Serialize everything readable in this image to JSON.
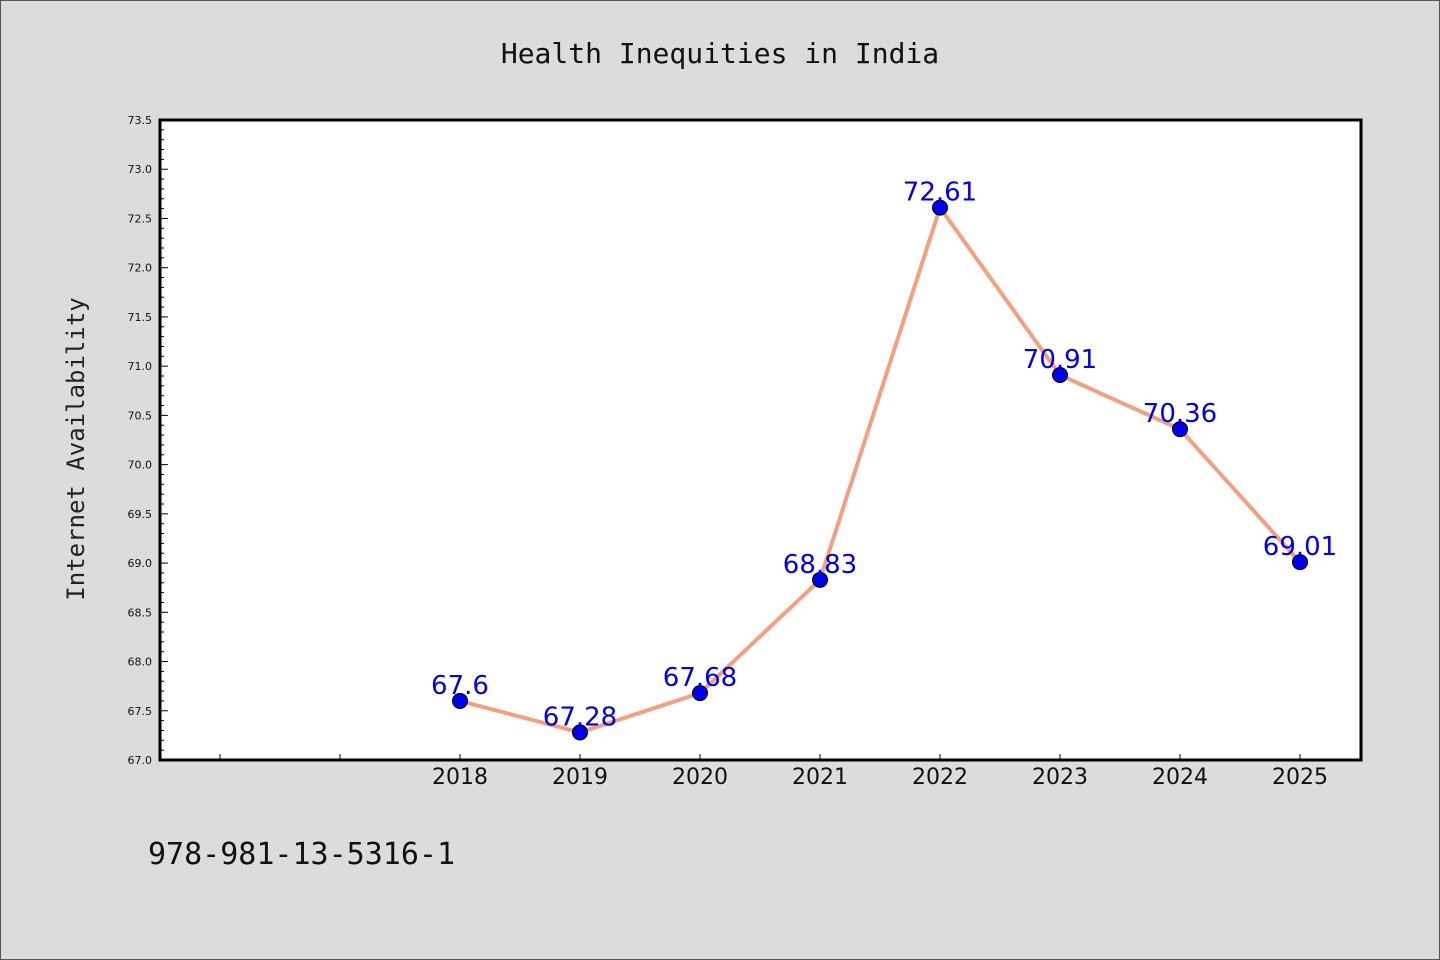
{
  "chart_data": {
    "type": "line",
    "title": "Health Inequities in India",
    "ylabel": "Internet Availability",
    "xlabel": "",
    "categories": [
      "2018",
      "2019",
      "2020",
      "2021",
      "2022",
      "2023",
      "2024",
      "2025"
    ],
    "series": [
      {
        "values": [
          67.6,
          67.28,
          67.68,
          68.83,
          72.61,
          70.91,
          70.36,
          69.01
        ]
      }
    ],
    "data_labels": [
      "67.6",
      "67.28",
      "67.68",
      "68.83",
      "72.61",
      "70.91",
      "70.36",
      "69.01"
    ],
    "ylim": [
      67.0,
      73.5
    ],
    "yticks": [
      "67.0",
      "67.5",
      "68.0",
      "68.5",
      "69.0",
      "69.5",
      "70.0",
      "70.5",
      "71.0",
      "71.5",
      "72.0",
      "72.5",
      "73.0",
      "73.5"
    ],
    "grid": false,
    "line_color": "#f4a07f",
    "marker_color": "#0000ee",
    "label_color": "#0000ee"
  },
  "footer": {
    "isbn": "978-981-13-5316-1"
  }
}
